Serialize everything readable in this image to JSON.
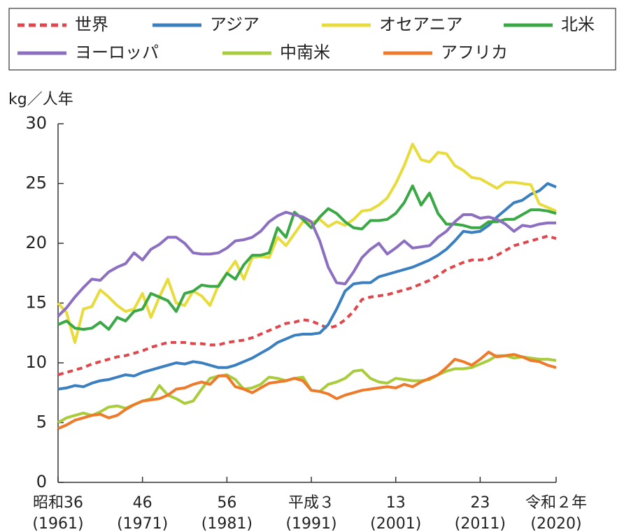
{
  "chart_data": {
    "type": "line",
    "ylabel": "kg／人年",
    "x": [
      1961,
      1962,
      1963,
      1964,
      1965,
      1966,
      1967,
      1968,
      1969,
      1970,
      1971,
      1972,
      1973,
      1974,
      1975,
      1976,
      1977,
      1978,
      1979,
      1980,
      1981,
      1982,
      1983,
      1984,
      1985,
      1986,
      1987,
      1988,
      1989,
      1990,
      1991,
      1992,
      1993,
      1994,
      1995,
      1996,
      1997,
      1998,
      1999,
      2000,
      2001,
      2002,
      2003,
      2004,
      2005,
      2006,
      2007,
      2008,
      2009,
      2010,
      2011,
      2012,
      2013,
      2014,
      2015,
      2016,
      2017,
      2018,
      2019,
      2020
    ],
    "xlim": [
      1961,
      2020
    ],
    "xticks": [
      {
        "value": 1961,
        "label": [
          "昭和36",
          "(1961)"
        ]
      },
      {
        "value": 1971,
        "label": [
          "46",
          "(1971)"
        ]
      },
      {
        "value": 1981,
        "label": [
          "56",
          "(1981)"
        ]
      },
      {
        "value": 1991,
        "label": [
          "平成３",
          "(1991)"
        ]
      },
      {
        "value": 2001,
        "label": [
          "13",
          "(2001)"
        ]
      },
      {
        "value": 2011,
        "label": [
          "23",
          "(2011)"
        ]
      },
      {
        "value": 2020,
        "label": [
          "令和２年",
          "(2020)"
        ]
      }
    ],
    "ylim": [
      0,
      30
    ],
    "yticks": [
      0,
      5,
      10,
      15,
      20,
      25,
      30
    ],
    "grid": false,
    "legend": "top",
    "series": [
      {
        "name": "世界",
        "color": "#e0474c",
        "dashed": true,
        "values": [
          9.0,
          9.2,
          9.4,
          9.6,
          9.9,
          10.1,
          10.3,
          10.5,
          10.6,
          10.8,
          11.0,
          11.3,
          11.5,
          11.7,
          11.7,
          11.7,
          11.6,
          11.6,
          11.5,
          11.5,
          11.7,
          11.8,
          11.9,
          12.1,
          12.4,
          12.7,
          13.0,
          13.3,
          13.4,
          13.6,
          13.5,
          13.2,
          12.9,
          13.1,
          13.6,
          14.3,
          15.3,
          15.5,
          15.6,
          15.7,
          15.9,
          16.1,
          16.3,
          16.6,
          16.9,
          17.3,
          17.8,
          18.1,
          18.4,
          18.6,
          18.6,
          18.7,
          19.0,
          19.4,
          19.8,
          20.0,
          20.2,
          20.4,
          20.6,
          20.4
        ]
      },
      {
        "name": "アジア",
        "color": "#3a7fbf",
        "values": [
          7.8,
          7.9,
          8.1,
          8.0,
          8.3,
          8.5,
          8.6,
          8.8,
          9.0,
          8.9,
          9.2,
          9.4,
          9.6,
          9.8,
          10.0,
          9.9,
          10.1,
          10.0,
          9.8,
          9.6,
          9.6,
          9.8,
          10.1,
          10.4,
          10.8,
          11.2,
          11.7,
          12.0,
          12.3,
          12.4,
          12.4,
          12.5,
          13.2,
          14.5,
          16.0,
          16.6,
          16.7,
          16.7,
          17.2,
          17.4,
          17.6,
          17.8,
          18.0,
          18.3,
          18.6,
          19.0,
          19.5,
          20.2,
          21.0,
          20.9,
          21.0,
          21.5,
          22.2,
          22.8,
          23.4,
          23.6,
          24.1,
          24.4,
          25.0,
          24.7
        ]
      },
      {
        "name": "オセアニア",
        "color": "#e8dc3c",
        "values": [
          15.0,
          14.2,
          11.7,
          14.5,
          14.7,
          16.1,
          15.5,
          14.8,
          14.3,
          14.5,
          15.8,
          13.8,
          15.5,
          17.0,
          15.0,
          14.8,
          16.0,
          15.6,
          14.8,
          16.5,
          17.5,
          18.5,
          17.0,
          18.8,
          18.9,
          18.8,
          20.5,
          19.8,
          20.8,
          21.8,
          21.7,
          22.0,
          21.4,
          21.8,
          21.5,
          22.0,
          22.7,
          22.8,
          23.2,
          23.8,
          25.0,
          26.5,
          28.3,
          27.0,
          26.8,
          27.6,
          27.5,
          26.5,
          26.1,
          25.5,
          25.4,
          25.0,
          24.6,
          25.1,
          25.1,
          25.0,
          24.9,
          23.3,
          23.0,
          22.7
        ]
      },
      {
        "name": "北米",
        "color": "#3aa845",
        "values": [
          13.2,
          13.5,
          12.9,
          12.8,
          12.9,
          13.4,
          12.8,
          13.8,
          13.5,
          14.3,
          14.5,
          15.8,
          15.5,
          15.2,
          14.3,
          15.8,
          16.0,
          16.5,
          16.4,
          16.4,
          17.5,
          17.0,
          18.2,
          19.0,
          19.0,
          19.2,
          21.3,
          20.5,
          22.6,
          22.0,
          21.3,
          22.2,
          22.9,
          22.5,
          21.8,
          21.3,
          21.2,
          21.9,
          21.9,
          22.0,
          22.5,
          23.4,
          24.8,
          23.2,
          24.2,
          22.5,
          21.6,
          21.6,
          21.5,
          21.3,
          21.3,
          21.8,
          21.8,
          22.0,
          22.0,
          22.4,
          22.8,
          22.8,
          22.7,
          22.5
        ]
      },
      {
        "name": "ヨーロッパ",
        "color": "#8c6fc0",
        "values": [
          13.9,
          14.6,
          15.5,
          16.3,
          17.0,
          16.9,
          17.6,
          18.0,
          18.3,
          19.2,
          18.6,
          19.5,
          19.9,
          20.5,
          20.5,
          20.0,
          19.2,
          19.1,
          19.1,
          19.2,
          19.6,
          20.2,
          20.3,
          20.5,
          21.0,
          21.8,
          22.3,
          22.6,
          22.4,
          22.2,
          21.8,
          20.2,
          18.0,
          16.7,
          16.6,
          17.6,
          18.8,
          19.5,
          20.0,
          19.1,
          19.6,
          20.2,
          19.6,
          19.7,
          19.8,
          20.5,
          21.0,
          21.8,
          22.4,
          22.4,
          22.1,
          22.2,
          22.0,
          21.6,
          21.0,
          21.5,
          21.4,
          21.6,
          21.7,
          21.7
        ]
      },
      {
        "name": "中南米",
        "color": "#a8cc3c",
        "values": [
          5.0,
          5.4,
          5.6,
          5.8,
          5.6,
          5.9,
          6.3,
          6.4,
          6.2,
          6.5,
          6.8,
          7.0,
          8.1,
          7.3,
          7.0,
          6.6,
          6.8,
          7.8,
          8.7,
          8.9,
          9.0,
          8.6,
          7.8,
          7.9,
          8.2,
          8.8,
          8.7,
          8.5,
          8.7,
          8.8,
          7.7,
          7.6,
          8.2,
          8.4,
          8.7,
          9.3,
          9.4,
          8.7,
          8.4,
          8.3,
          8.7,
          8.6,
          8.5,
          8.5,
          8.6,
          9.0,
          9.3,
          9.5,
          9.5,
          9.6,
          9.9,
          10.2,
          10.6,
          10.6,
          10.4,
          10.5,
          10.4,
          10.3,
          10.3,
          10.2
        ]
      },
      {
        "name": "アフリカ",
        "color": "#ee7a2c",
        "values": [
          4.5,
          4.8,
          5.2,
          5.4,
          5.6,
          5.7,
          5.4,
          5.6,
          6.1,
          6.5,
          6.8,
          6.9,
          7.0,
          7.3,
          7.8,
          7.9,
          8.2,
          8.4,
          8.2,
          8.9,
          8.9,
          8.0,
          7.8,
          7.5,
          7.9,
          8.3,
          8.4,
          8.5,
          8.7,
          8.5,
          7.7,
          7.6,
          7.4,
          7.0,
          7.3,
          7.5,
          7.7,
          7.8,
          7.9,
          8.0,
          7.9,
          8.2,
          8.0,
          8.4,
          8.7,
          9.0,
          9.6,
          10.3,
          10.1,
          9.8,
          10.3,
          10.9,
          10.5,
          10.6,
          10.7,
          10.5,
          10.2,
          10.1,
          9.8,
          9.6
        ]
      }
    ]
  }
}
